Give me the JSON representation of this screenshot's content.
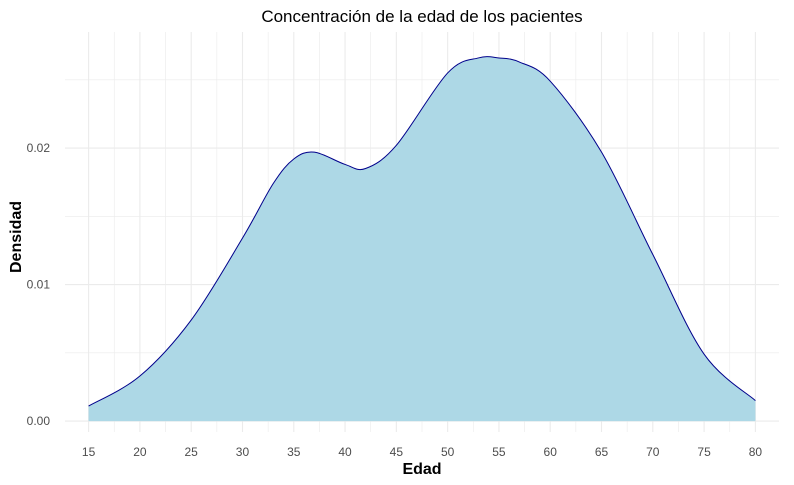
{
  "chart_data": {
    "type": "area",
    "title": "Concentración de la edad de los pacientes",
    "xlabel": "Edad",
    "ylabel": "Densidad",
    "xlim": [
      12.7,
      82.3
    ],
    "ylim": [
      -0.0008,
      0.0285
    ],
    "x_ticks": [
      15,
      20,
      25,
      30,
      35,
      40,
      45,
      50,
      55,
      60,
      65,
      70,
      75,
      80
    ],
    "x_tick_labels": [
      "15",
      "20",
      "25",
      "30",
      "35",
      "40",
      "45",
      "50",
      "55",
      "60",
      "65",
      "70",
      "75",
      "80"
    ],
    "y_ticks": [
      0,
      0.01,
      0.02
    ],
    "y_tick_labels": [
      "0.00",
      "0.01",
      "0.02"
    ],
    "grid": true,
    "legend": "none",
    "series": [
      {
        "x": [
          15,
          20,
          25,
          30,
          33,
          35,
          37,
          40,
          42,
          45,
          50,
          53,
          55,
          57,
          60,
          65,
          70,
          75,
          80
        ],
        "values": [
          0.0011,
          0.0033,
          0.0074,
          0.0134,
          0.0174,
          0.0192,
          0.0197,
          0.0188,
          0.0185,
          0.0202,
          0.0255,
          0.0266,
          0.0266,
          0.0263,
          0.0249,
          0.0197,
          0.0122,
          0.0049,
          0.0015
        ]
      }
    ],
    "colors": {
      "fill": "#add8e6",
      "line": "#00008b",
      "grid": "#ebebeb"
    }
  }
}
